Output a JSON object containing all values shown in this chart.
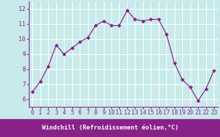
{
  "x": [
    0,
    1,
    2,
    3,
    4,
    5,
    6,
    7,
    8,
    9,
    10,
    11,
    12,
    13,
    14,
    15,
    16,
    17,
    18,
    19,
    20,
    21,
    22,
    23
  ],
  "y": [
    6.5,
    7.2,
    8.2,
    9.6,
    9.0,
    9.4,
    9.8,
    10.1,
    10.9,
    11.2,
    10.9,
    10.9,
    11.9,
    11.3,
    11.2,
    11.3,
    11.3,
    10.3,
    8.4,
    7.3,
    6.8,
    5.9,
    6.7,
    7.9
  ],
  "line_color": "#882288",
  "marker": "D",
  "marker_size": 2.5,
  "bg_color": "#c8eaea",
  "grid_color": "#ffffff",
  "xlabel": "Windchill (Refroidissement éolien,°C)",
  "xlim": [
    -0.5,
    23.5
  ],
  "ylim": [
    5.5,
    12.5
  ],
  "yticks": [
    6,
    7,
    8,
    9,
    10,
    11,
    12
  ],
  "xticks": [
    0,
    1,
    2,
    3,
    4,
    5,
    6,
    7,
    8,
    9,
    10,
    11,
    12,
    13,
    14,
    15,
    16,
    17,
    18,
    19,
    20,
    21,
    22,
    23
  ],
  "xlabel_fontsize": 6.5,
  "tick_fontsize": 6.0,
  "label_color": "#882288",
  "spine_color": "#882288",
  "xlabel_bg": "#882288",
  "xlabel_text_color": "#ffffff"
}
